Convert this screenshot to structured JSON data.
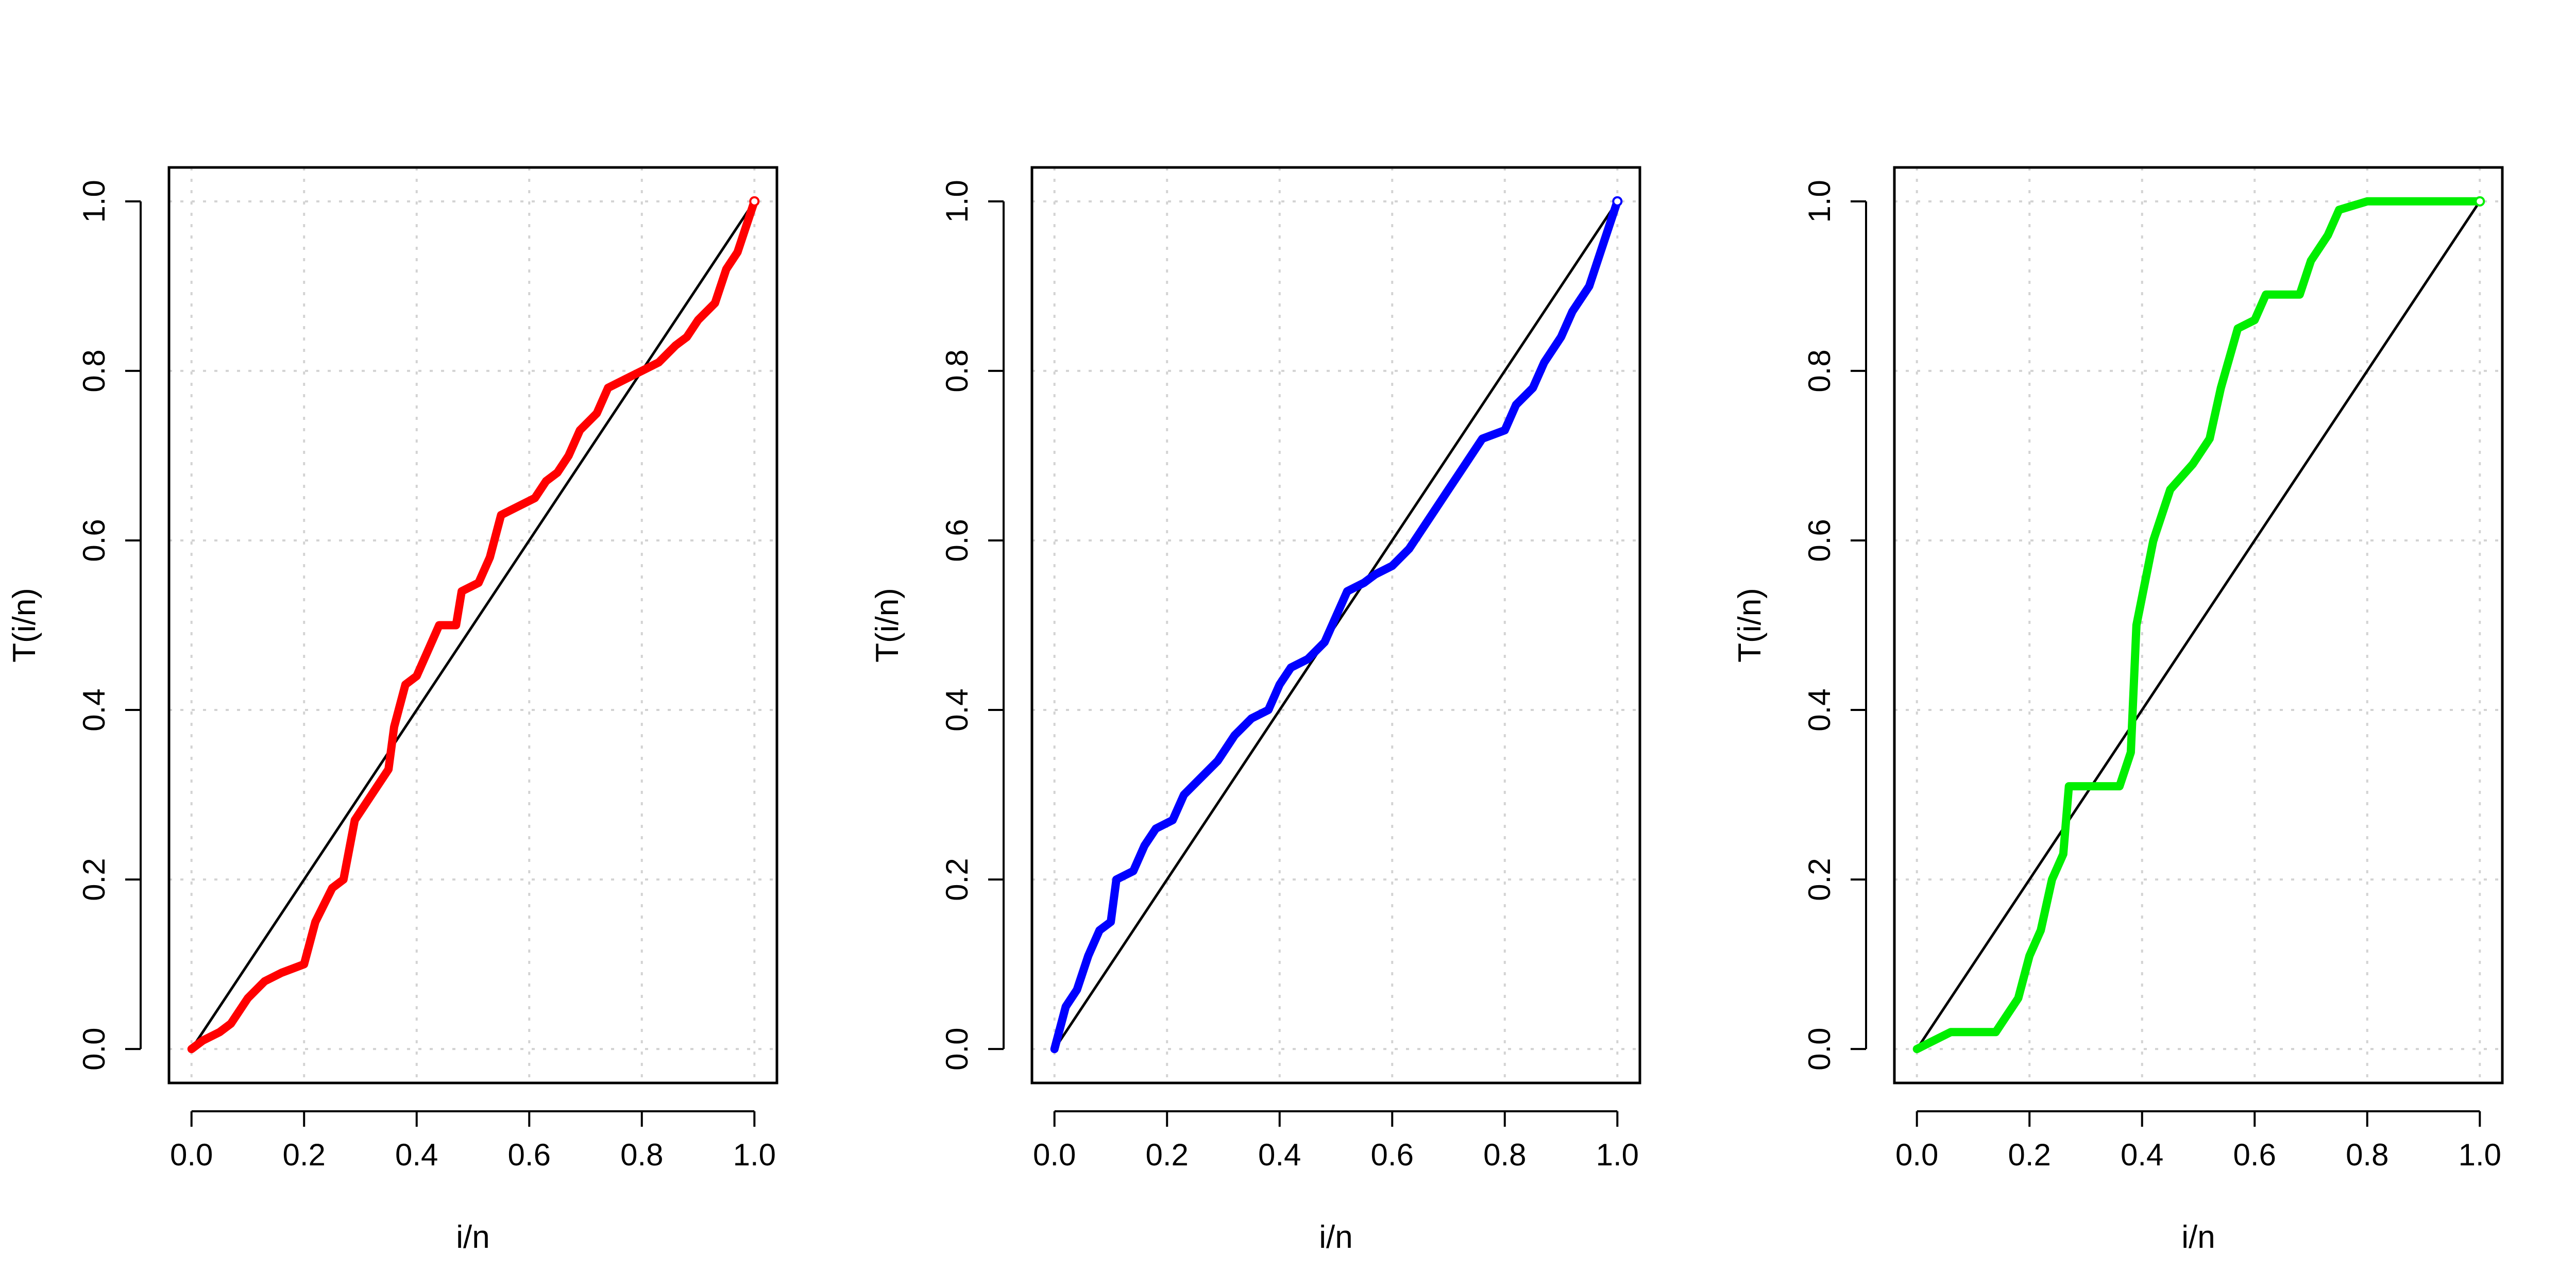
{
  "chart_data": [
    {
      "type": "line",
      "xlabel": "i/n",
      "ylabel": "T(i/n)",
      "xlim": [
        0,
        1
      ],
      "ylim": [
        0,
        1
      ],
      "x_ticks": [
        "0.0",
        "0.2",
        "0.4",
        "0.6",
        "0.8",
        "1.0"
      ],
      "y_ticks": [
        "0.0",
        "0.2",
        "0.4",
        "0.6",
        "0.8",
        "1.0"
      ],
      "grid": true,
      "series": [
        {
          "color": "#ff0000",
          "role": "curve",
          "points": [
            [
              0.0,
              0.0
            ],
            [
              0.02,
              0.01
            ],
            [
              0.05,
              0.02
            ],
            [
              0.07,
              0.03
            ],
            [
              0.1,
              0.06
            ],
            [
              0.13,
              0.08
            ],
            [
              0.16,
              0.09
            ],
            [
              0.2,
              0.1
            ],
            [
              0.22,
              0.15
            ],
            [
              0.25,
              0.19
            ],
            [
              0.27,
              0.2
            ],
            [
              0.29,
              0.27
            ],
            [
              0.32,
              0.3
            ],
            [
              0.35,
              0.33
            ],
            [
              0.36,
              0.38
            ],
            [
              0.38,
              0.43
            ],
            [
              0.4,
              0.44
            ],
            [
              0.42,
              0.47
            ],
            [
              0.44,
              0.5
            ],
            [
              0.47,
              0.5
            ],
            [
              0.48,
              0.54
            ],
            [
              0.51,
              0.55
            ],
            [
              0.53,
              0.58
            ],
            [
              0.55,
              0.63
            ],
            [
              0.58,
              0.64
            ],
            [
              0.61,
              0.65
            ],
            [
              0.63,
              0.67
            ],
            [
              0.65,
              0.68
            ],
            [
              0.67,
              0.7
            ],
            [
              0.69,
              0.73
            ],
            [
              0.72,
              0.75
            ],
            [
              0.74,
              0.78
            ],
            [
              0.77,
              0.79
            ],
            [
              0.8,
              0.8
            ],
            [
              0.83,
              0.81
            ],
            [
              0.86,
              0.83
            ],
            [
              0.88,
              0.84
            ],
            [
              0.9,
              0.86
            ],
            [
              0.93,
              0.88
            ],
            [
              0.95,
              0.92
            ],
            [
              0.97,
              0.94
            ],
            [
              1.0,
              1.0
            ]
          ]
        },
        {
          "color": "#000000",
          "role": "reference",
          "points": [
            [
              0,
              0
            ],
            [
              1,
              1
            ]
          ]
        }
      ]
    },
    {
      "type": "line",
      "xlabel": "i/n",
      "ylabel": "T(i/n)",
      "xlim": [
        0,
        1
      ],
      "ylim": [
        0,
        1
      ],
      "x_ticks": [
        "0.0",
        "0.2",
        "0.4",
        "0.6",
        "0.8",
        "1.0"
      ],
      "y_ticks": [
        "0.0",
        "0.2",
        "0.4",
        "0.6",
        "0.8",
        "1.0"
      ],
      "grid": true,
      "series": [
        {
          "color": "#0000ff",
          "role": "curve",
          "points": [
            [
              0.0,
              0.0
            ],
            [
              0.02,
              0.05
            ],
            [
              0.04,
              0.07
            ],
            [
              0.06,
              0.11
            ],
            [
              0.08,
              0.14
            ],
            [
              0.1,
              0.15
            ],
            [
              0.11,
              0.2
            ],
            [
              0.14,
              0.21
            ],
            [
              0.16,
              0.24
            ],
            [
              0.18,
              0.26
            ],
            [
              0.21,
              0.27
            ],
            [
              0.23,
              0.3
            ],
            [
              0.26,
              0.32
            ],
            [
              0.29,
              0.34
            ],
            [
              0.32,
              0.37
            ],
            [
              0.35,
              0.39
            ],
            [
              0.38,
              0.4
            ],
            [
              0.4,
              0.43
            ],
            [
              0.42,
              0.45
            ],
            [
              0.45,
              0.46
            ],
            [
              0.48,
              0.48
            ],
            [
              0.5,
              0.51
            ],
            [
              0.52,
              0.54
            ],
            [
              0.55,
              0.55
            ],
            [
              0.57,
              0.56
            ],
            [
              0.6,
              0.57
            ],
            [
              0.63,
              0.59
            ],
            [
              0.65,
              0.61
            ],
            [
              0.68,
              0.64
            ],
            [
              0.7,
              0.66
            ],
            [
              0.73,
              0.69
            ],
            [
              0.76,
              0.72
            ],
            [
              0.8,
              0.73
            ],
            [
              0.82,
              0.76
            ],
            [
              0.85,
              0.78
            ],
            [
              0.87,
              0.81
            ],
            [
              0.9,
              0.84
            ],
            [
              0.92,
              0.87
            ],
            [
              0.95,
              0.9
            ],
            [
              0.97,
              0.94
            ],
            [
              1.0,
              1.0
            ]
          ]
        },
        {
          "color": "#000000",
          "role": "reference",
          "points": [
            [
              0,
              0
            ],
            [
              1,
              1
            ]
          ]
        }
      ]
    },
    {
      "type": "line",
      "xlabel": "i/n",
      "ylabel": "T(i/n)",
      "xlim": [
        0,
        1
      ],
      "ylim": [
        0,
        1
      ],
      "x_ticks": [
        "0.0",
        "0.2",
        "0.4",
        "0.6",
        "0.8",
        "1.0"
      ],
      "y_ticks": [
        "0.0",
        "0.2",
        "0.4",
        "0.6",
        "0.8",
        "1.0"
      ],
      "grid": true,
      "series": [
        {
          "color": "#00ee00",
          "role": "curve",
          "points": [
            [
              0.0,
              0.0
            ],
            [
              0.03,
              0.01
            ],
            [
              0.06,
              0.02
            ],
            [
              0.1,
              0.02
            ],
            [
              0.14,
              0.02
            ],
            [
              0.16,
              0.04
            ],
            [
              0.18,
              0.06
            ],
            [
              0.2,
              0.11
            ],
            [
              0.22,
              0.14
            ],
            [
              0.24,
              0.2
            ],
            [
              0.26,
              0.23
            ],
            [
              0.27,
              0.31
            ],
            [
              0.3,
              0.31
            ],
            [
              0.33,
              0.31
            ],
            [
              0.36,
              0.31
            ],
            [
              0.38,
              0.35
            ],
            [
              0.39,
              0.5
            ],
            [
              0.42,
              0.6
            ],
            [
              0.45,
              0.66
            ],
            [
              0.49,
              0.69
            ],
            [
              0.52,
              0.72
            ],
            [
              0.54,
              0.78
            ],
            [
              0.57,
              0.85
            ],
            [
              0.6,
              0.86
            ],
            [
              0.62,
              0.89
            ],
            [
              0.65,
              0.89
            ],
            [
              0.68,
              0.89
            ],
            [
              0.7,
              0.93
            ],
            [
              0.73,
              0.96
            ],
            [
              0.75,
              0.99
            ],
            [
              0.8,
              1.0
            ],
            [
              0.85,
              1.0
            ],
            [
              1.0,
              1.0
            ]
          ]
        },
        {
          "color": "#000000",
          "role": "reference",
          "points": [
            [
              0,
              0
            ],
            [
              1,
              1
            ]
          ]
        }
      ]
    }
  ]
}
